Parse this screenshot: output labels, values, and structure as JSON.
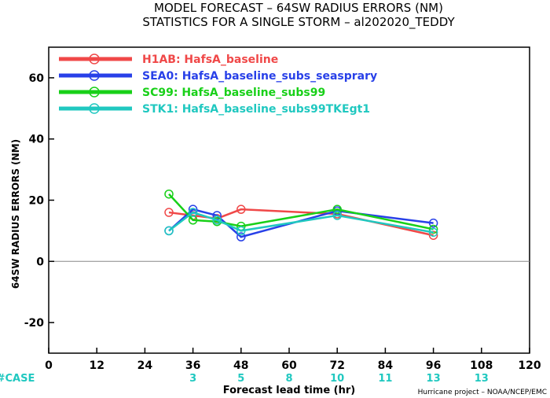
{
  "chart_data": {
    "type": "line",
    "title": "MODEL FORECAST – 64SW RADIUS ERRORS (NM)",
    "subtitle": "STATISTICS FOR A SINGLE STORM – al202020_TEDDY",
    "xlabel": "Forecast lead time (hr)",
    "ylabel": "64SW RADIUS ERRORS (NM)",
    "xlim": [
      0,
      120
    ],
    "ylim": [
      -30,
      70
    ],
    "xticks": [
      0,
      12,
      24,
      36,
      48,
      60,
      72,
      84,
      96,
      108,
      120
    ],
    "yticks": [
      -20,
      0,
      20,
      40,
      60
    ],
    "x": [
      30,
      36,
      42,
      48,
      72,
      96
    ],
    "series": [
      {
        "name": "H1AB: HafsA_baseline",
        "color": "#f04848",
        "values": [
          16,
          15,
          14,
          17,
          15.5,
          8.5
        ]
      },
      {
        "name": "SEA0: HafsA_baseline_subs_seasprary",
        "color": "#2840e8",
        "values": [
          10,
          17,
          15,
          8,
          16.5,
          12.5
        ]
      },
      {
        "name": "SC99: HafsA_baseline_subs99",
        "color": "#18d018",
        "values": [
          22,
          13.5,
          13,
          11.5,
          17,
          10.5
        ]
      },
      {
        "name": "STK1: HafsA_baseline_subs99TKEgt1",
        "color": "#20c8c0",
        "values": [
          10,
          16,
          13.5,
          10,
          15,
          9.5
        ]
      }
    ],
    "case_label": "#CASE",
    "case_counts": [
      {
        "x": 36,
        "n": "3"
      },
      {
        "x": 48,
        "n": "5"
      },
      {
        "x": 60,
        "n": "8"
      },
      {
        "x": 72,
        "n": "10"
      },
      {
        "x": 84,
        "n": "11"
      },
      {
        "x": 96,
        "n": "13"
      },
      {
        "x": 108,
        "n": "13"
      }
    ],
    "case_color": "#20c8c0",
    "credit": "Hurricane project – NOAA/NCEP/EMC",
    "grid": false,
    "legend_position": "top-left"
  }
}
